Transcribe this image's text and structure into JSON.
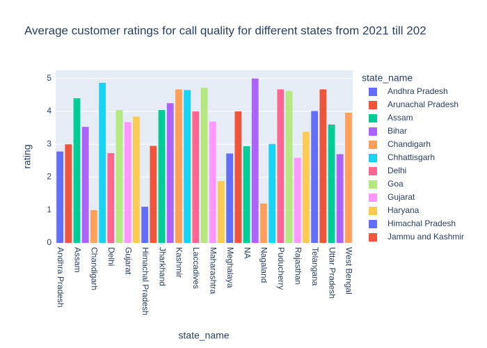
{
  "chart_data": {
    "type": "bar",
    "title": "Average customer ratings for call quality for different states from 2021 till 202",
    "x_label": "state_name",
    "y_label": "rating",
    "categories": [
      "Andhra Pradesh",
      null,
      "Assam",
      null,
      "Chandigarh",
      null,
      "Delhi",
      null,
      "Gujarat",
      null,
      "Himachal Pradesh",
      null,
      "Jharkhand",
      null,
      "Kashmir",
      null,
      "Laccadives",
      null,
      "Maharashtra",
      null,
      "Meghalaya",
      null,
      "NA",
      null,
      "Nagaland",
      null,
      "Puducherry",
      null,
      "Rajasthan",
      null,
      "Telangana",
      null,
      "Uttar Pradesh",
      null,
      "West Bengal"
    ],
    "values": [
      2.78,
      3.0,
      4.4,
      3.53,
      1.0,
      4.87,
      2.73,
      4.04,
      3.67,
      3.84,
      1.1,
      2.95,
      4.04,
      4.25,
      4.67,
      4.65,
      4.0,
      4.72,
      3.69,
      1.88,
      2.72,
      4.0,
      2.94,
      5.0,
      1.2,
      3.01,
      4.67,
      4.62,
      2.59,
      3.38,
      4.01,
      4.67,
      3.6,
      2.7,
      3.96
    ],
    "colors": [
      "#636efa",
      "#ef553b",
      "#00cc96",
      "#ab63fa",
      "#ffa15a",
      "#19d3f3",
      "#ff6692",
      "#b6e880",
      "#ff97ff",
      "#fecb52",
      "#636efa",
      "#ef553b",
      "#00cc96",
      "#ab63fa",
      "#ffa15a",
      "#19d3f3",
      "#ff6692",
      "#b6e880",
      "#ff97ff",
      "#fecb52",
      "#636efa",
      "#ef553b",
      "#00cc96",
      "#ab63fa",
      "#ffa15a",
      "#19d3f3",
      "#ff6692",
      "#b6e880",
      "#ff97ff",
      "#fecb52",
      "#636efa",
      "#ef553b",
      "#00cc96",
      "#ab63fa",
      "#ffa15a"
    ],
    "ylim": [
      0,
      5.25
    ],
    "yticks": [
      0,
      1,
      2,
      3,
      4,
      5
    ],
    "grid": true,
    "legend": {
      "title": "state_name",
      "position": "right",
      "names": [
        "Andhra Pradesh",
        "Arunachal Pradesh",
        "Assam",
        "Bihar",
        "Chandigarh",
        "Chhattisgarh",
        "Delhi",
        "Goa",
        "Gujarat",
        "Haryana",
        "Himachal Pradesh",
        "Jammu and Kashmir"
      ],
      "colors": [
        "#636efa",
        "#ef553b",
        "#00cc96",
        "#ab63fa",
        "#ffa15a",
        "#19d3f3",
        "#ff6692",
        "#b6e880",
        "#ff97ff",
        "#fecb52",
        "#636efa",
        "#ef553b"
      ]
    }
  }
}
